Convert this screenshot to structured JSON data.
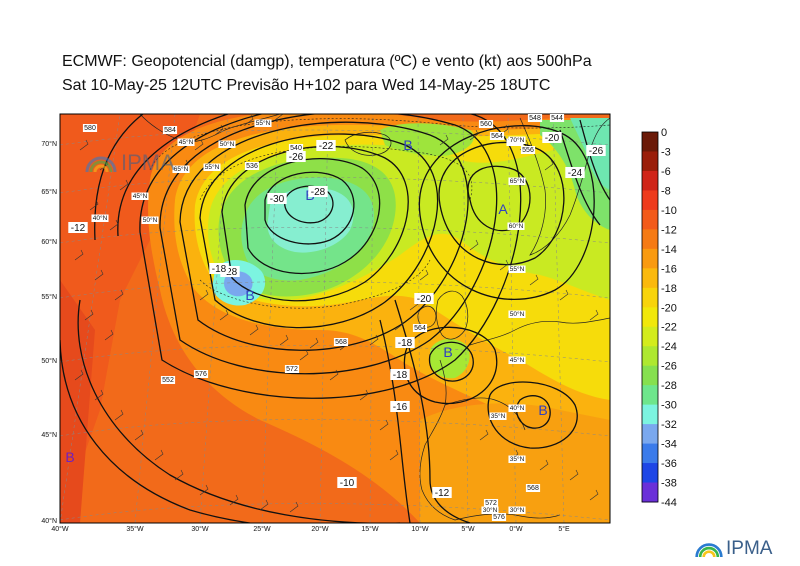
{
  "title": {
    "line1": "ECMWF:  Geopotencial (damgp), temperatura (ºC) e vento (kt) aos 500hPa",
    "line2": "Sat 10-May-25 12UTC Previsão H+102 para Wed 14-May-25 18UTC"
  },
  "branding": {
    "logo_text": "IPMA",
    "logo_icon": "ipma-rainbow-icon"
  },
  "colorbar": {
    "labels": [
      "0",
      "-3",
      "-6",
      "-8",
      "-10",
      "-12",
      "-14",
      "-16",
      "-18",
      "-20",
      "-22",
      "-24",
      "-26",
      "-28",
      "-30",
      "-32",
      "-34",
      "-36",
      "-38",
      "-44"
    ],
    "colors": [
      "#6b1a08",
      "#9a1e0a",
      "#cf2418",
      "#ee3a1c",
      "#f25a1a",
      "#f57a14",
      "#f99a10",
      "#fbb90d",
      "#f8d40b",
      "#f1e80a",
      "#d3ec1c",
      "#aee830",
      "#86e04f",
      "#6ee68c",
      "#7cf4e0",
      "#7aa8ee",
      "#3b7bea",
      "#1e46e6",
      "#6a30d8",
      "#e020e8"
    ]
  },
  "axes": {
    "lon_labels": [
      "40°W",
      "35°W",
      "30°W",
      "25°W",
      "20°W",
      "15°W",
      "10°W",
      "5°W",
      "0°W",
      "5°E"
    ],
    "lat_labels": [
      "70°N",
      "65°N",
      "60°N",
      "55°N",
      "50°N",
      "45°N",
      "40°N"
    ]
  },
  "map_labels": {
    "pressure_systems": [
      "B",
      "B",
      "B",
      "A",
      "B",
      "B",
      "B"
    ],
    "geopotential": [
      "580",
      "584",
      "540",
      "560",
      "564",
      "548",
      "544",
      "568",
      "572",
      "576",
      "552",
      "536",
      "556",
      "564",
      "568",
      "572",
      "576"
    ],
    "temperature": [
      "-12",
      "-28",
      "-22",
      "-26",
      "-28",
      "-30",
      "-18",
      "-20",
      "-18",
      "-18",
      "-16",
      "-10",
      "-12",
      "-20",
      "-24",
      "-26"
    ],
    "graticule": [
      "70°N",
      "65°N",
      "55°N",
      "50°N",
      "45°N",
      "40°N",
      "35°N",
      "30°N",
      "60°N",
      "55°N",
      "50°N",
      "45°N",
      "40°N",
      "35°N",
      "30°N",
      "65°N",
      "70°N",
      "50°N",
      "55°N",
      "45°N"
    ]
  },
  "chart_data": {
    "type": "map",
    "variables": [
      "geopotential 500hPa (damgp)",
      "temperature 500hPa (ºC)",
      "wind 500hPa (kt)"
    ],
    "lon_range": [
      "40°W",
      "10°E"
    ],
    "lat_range": [
      "40°N",
      "73°N"
    ],
    "low_centers": [
      "B",
      "B",
      "B",
      "B",
      "B",
      "B"
    ],
    "high_centers": [
      "A"
    ]
  }
}
